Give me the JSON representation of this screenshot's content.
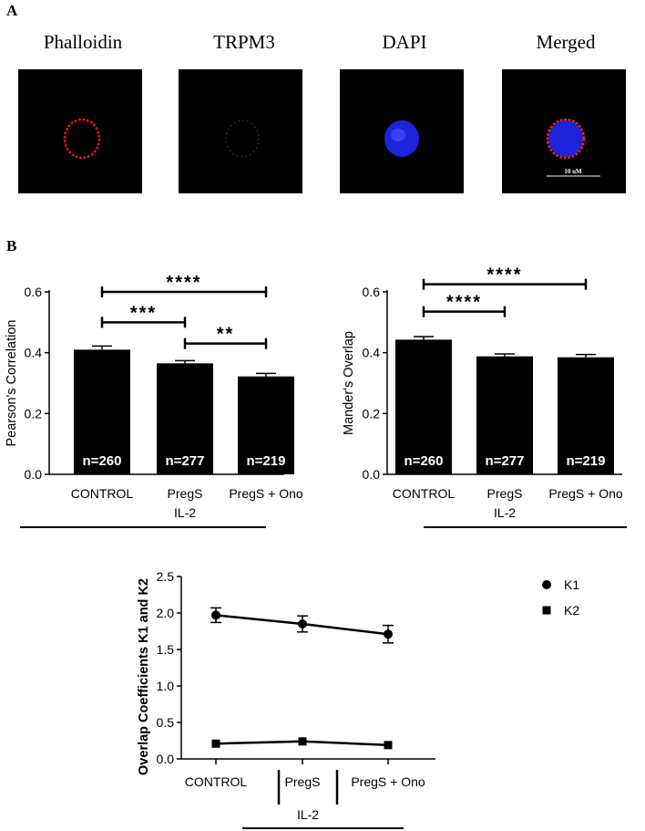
{
  "panels": {
    "a": "A",
    "b": "B"
  },
  "images": [
    {
      "label": "Phalloidin",
      "icon": "red-ring-cell-icon"
    },
    {
      "label": "TRPM3",
      "icon": "green-dots-cell-icon"
    },
    {
      "label": "DAPI",
      "icon": "blue-nucleus-cell-icon"
    },
    {
      "label": "Merged",
      "icon": "merged-cell-icon"
    }
  ],
  "scale_bar": "10 uM",
  "chart_data": [
    {
      "type": "bar",
      "categories": [
        "CONTROL",
        "PregS",
        "PregS + Ono"
      ],
      "values": [
        0.41,
        0.365,
        0.322
      ],
      "errors": [
        0.012,
        0.009,
        0.01
      ],
      "n_labels": [
        "n=260",
        "n=277",
        "n=219"
      ],
      "ylabel": "Pearson's Correlation",
      "ylim": [
        0,
        0.6
      ],
      "yticks": [
        "0.0",
        "0.2",
        "0.4",
        "0.6"
      ],
      "group_label": "IL-2",
      "significance": [
        {
          "from": 0,
          "to": 2,
          "y": 0.6,
          "label": "****"
        },
        {
          "from": 0,
          "to": 1,
          "y": 0.5,
          "label": "***"
        },
        {
          "from": 1,
          "to": 2,
          "y": 0.43,
          "label": "**"
        }
      ]
    },
    {
      "type": "bar",
      "categories": [
        "CONTROL",
        "PregS",
        "PregS + Ono"
      ],
      "values": [
        0.443,
        0.388,
        0.385
      ],
      "errors": [
        0.01,
        0.008,
        0.009
      ],
      "n_labels": [
        "n=260",
        "n=277",
        "n=219"
      ],
      "ylabel": "Mander's Overlap",
      "ylim": [
        0,
        0.6
      ],
      "yticks": [
        "0.0",
        "0.2",
        "0.4",
        "0.6"
      ],
      "group_label": "IL-2",
      "significance": [
        {
          "from": 0,
          "to": 2,
          "y": 0.625,
          "label": "****"
        },
        {
          "from": 0,
          "to": 1,
          "y": 0.535,
          "label": "****"
        }
      ]
    },
    {
      "type": "line",
      "categories": [
        "CONTROL",
        "PregS",
        "PregS + Ono"
      ],
      "ylabel": "Overlap Coefficients K1 and K2",
      "ylim": [
        0,
        2.5
      ],
      "yticks": [
        "0.0",
        "0.5",
        "1.0",
        "1.5",
        "2.0",
        "2.5"
      ],
      "group_label": "IL-2",
      "series": [
        {
          "name": "K1",
          "marker": "circle",
          "values": [
            1.97,
            1.85,
            1.71
          ],
          "errors": [
            0.1,
            0.11,
            0.12
          ]
        },
        {
          "name": "K2",
          "marker": "square",
          "values": [
            0.21,
            0.24,
            0.19
          ],
          "errors": [
            0,
            0,
            0
          ]
        }
      ]
    }
  ]
}
